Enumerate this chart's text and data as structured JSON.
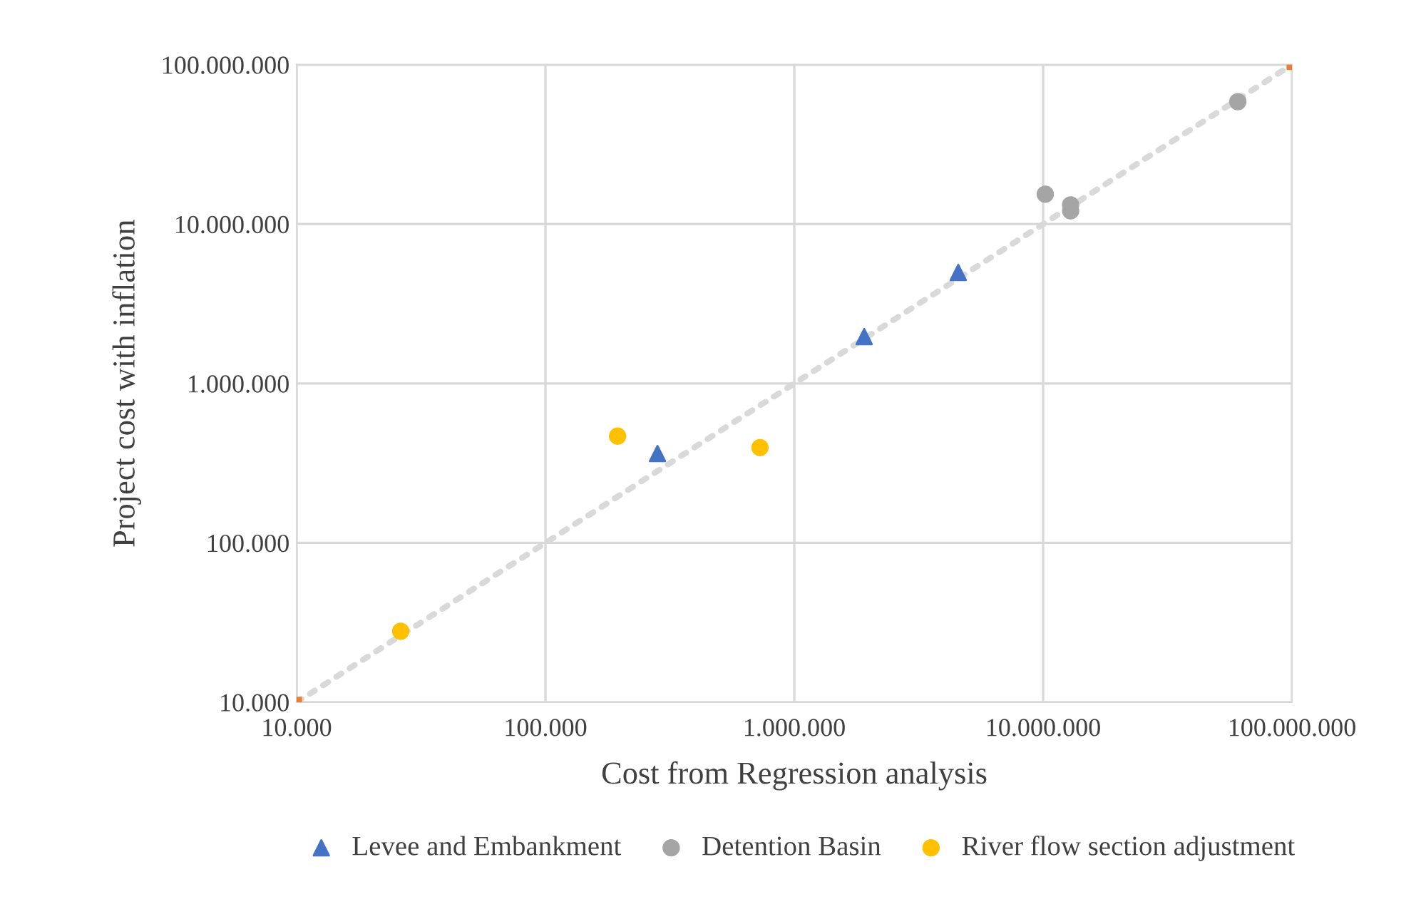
{
  "chart_data": {
    "type": "scatter",
    "xlabel": "Cost from Regression analysis",
    "ylabel": "Project cost with inflation",
    "log": "xy",
    "grid": true,
    "legend": "bottom",
    "xlim": [
      10000,
      100000000
    ],
    "ylim": [
      10000,
      100000000
    ],
    "xticks": [
      {
        "value": 10000,
        "label": "10.000"
      },
      {
        "value": 100000,
        "label": "100.000"
      },
      {
        "value": 1000000,
        "label": "1.000.000"
      },
      {
        "value": 10000000,
        "label": "10.000.000"
      },
      {
        "value": 100000000,
        "label": "100.000.000"
      }
    ],
    "yticks": [
      {
        "value": 10000,
        "label": "10.000"
      },
      {
        "value": 100000,
        "label": "100.000"
      },
      {
        "value": 1000000,
        "label": "1.000.000"
      },
      {
        "value": 10000000,
        "label": "10.000.000"
      },
      {
        "value": 100000000,
        "label": "100.000.000"
      }
    ],
    "series": [
      {
        "type": "line",
        "color": "#d9d9d9",
        "line_style": "dotted",
        "marker": "none",
        "x": [
          10000,
          100000000
        ],
        "values": [
          10000,
          100000000
        ]
      },
      {
        "type": "scatter",
        "color": "#ed7d31",
        "marker": "square",
        "x": [
          10000,
          100000000
        ],
        "values": [
          10000,
          100000000
        ]
      },
      {
        "name": "Levee and Embankment",
        "color": "#4472c4",
        "marker": "triangle",
        "x": [
          282000,
          1910000,
          4560000
        ],
        "values": [
          363000,
          1970000,
          4970000
        ]
      },
      {
        "name": "Detention Basin",
        "color": "#a5a5a5",
        "marker": "circle",
        "x": [
          10200000,
          12900000,
          12900000,
          60600000
        ],
        "values": [
          15400000,
          12100000,
          13200000,
          58600000
        ]
      },
      {
        "name": "River flow section adjustment",
        "color": "#ffc000",
        "marker": "circle",
        "x": [
          26200,
          195000,
          728000
        ],
        "values": [
          27900,
          467000,
          396000
        ]
      }
    ]
  }
}
